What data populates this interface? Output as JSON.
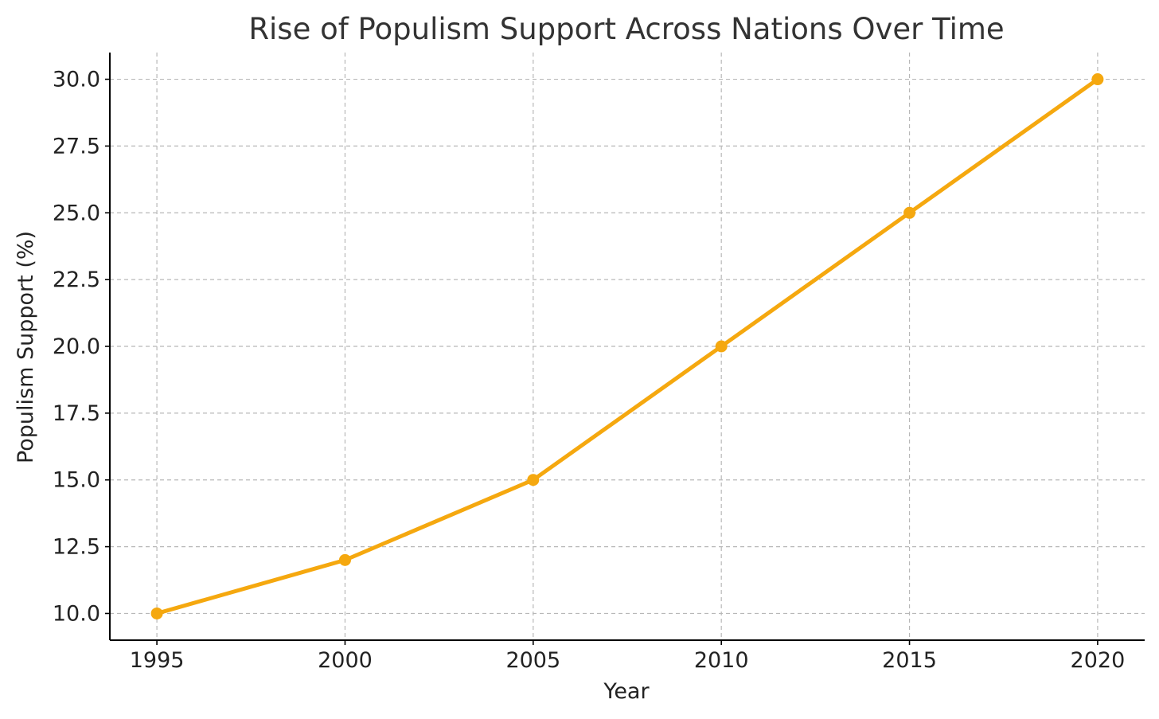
{
  "chart_data": {
    "type": "line",
    "title": "Rise of Populism Support Across Nations Over Time",
    "xlabel": "Year",
    "ylabel": "Populism Support (%)",
    "x": [
      1995,
      2000,
      2005,
      2010,
      2015,
      2020
    ],
    "series": [
      {
        "values": [
          10,
          12,
          15,
          20,
          25,
          30
        ],
        "color": "#f5a80f",
        "marker": "circle"
      }
    ],
    "xlim": [
      1993.75,
      2021.25
    ],
    "ylim": [
      9.0,
      31.0
    ],
    "xticks": [
      1995,
      2000,
      2005,
      2010,
      2015,
      2020
    ],
    "xtick_labels": [
      "1995",
      "2000",
      "2005",
      "2010",
      "2015",
      "2020"
    ],
    "yticks": [
      10.0,
      12.5,
      15.0,
      17.5,
      20.0,
      22.5,
      25.0,
      27.5,
      30.0
    ],
    "ytick_labels": [
      "10.0",
      "12.5",
      "15.0",
      "17.5",
      "20.0",
      "22.5",
      "25.0",
      "27.5",
      "30.0"
    ],
    "grid": true,
    "legend": "none"
  }
}
